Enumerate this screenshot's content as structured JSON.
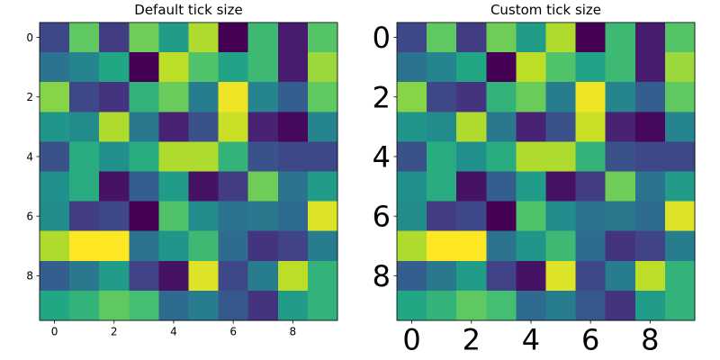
{
  "chart_data": [
    {
      "type": "heatmap",
      "title": "Default tick size",
      "xlabel": "",
      "ylabel": "",
      "xticks": [
        0,
        2,
        4,
        6,
        8
      ],
      "yticks": [
        0,
        2,
        4,
        6,
        8
      ],
      "xlim": [
        -0.5,
        9.5
      ],
      "ylim": [
        9.5,
        -0.5
      ],
      "colormap": "viridis",
      "grid": false,
      "values": [
        [
          0.22,
          0.75,
          0.18,
          0.78,
          0.55,
          0.88,
          0.0,
          0.68,
          0.08,
          0.73
        ],
        [
          0.38,
          0.45,
          0.6,
          0.0,
          0.9,
          0.72,
          0.58,
          0.68,
          0.08,
          0.85
        ],
        [
          0.82,
          0.22,
          0.15,
          0.65,
          0.77,
          0.42,
          0.98,
          0.45,
          0.3,
          0.75
        ],
        [
          0.52,
          0.48,
          0.88,
          0.4,
          0.1,
          0.25,
          0.92,
          0.1,
          0.02,
          0.45
        ],
        [
          0.25,
          0.62,
          0.5,
          0.62,
          0.88,
          0.88,
          0.65,
          0.25,
          0.22,
          0.22
        ],
        [
          0.5,
          0.62,
          0.05,
          0.3,
          0.55,
          0.05,
          0.18,
          0.78,
          0.38,
          0.55
        ],
        [
          0.48,
          0.18,
          0.22,
          0.0,
          0.72,
          0.48,
          0.38,
          0.4,
          0.35,
          0.95
        ],
        [
          0.88,
          1.0,
          1.0,
          0.38,
          0.52,
          0.68,
          0.35,
          0.15,
          0.2,
          0.42
        ],
        [
          0.3,
          0.4,
          0.55,
          0.2,
          0.05,
          0.95,
          0.22,
          0.42,
          0.9,
          0.65
        ],
        [
          0.6,
          0.65,
          0.75,
          0.7,
          0.35,
          0.42,
          0.28,
          0.15,
          0.55,
          0.65
        ]
      ]
    },
    {
      "type": "heatmap",
      "title": "Custom tick size",
      "xlabel": "",
      "ylabel": "",
      "xticks": [
        0,
        2,
        4,
        6,
        8
      ],
      "yticks": [
        0,
        2,
        4,
        6,
        8
      ],
      "xlim": [
        -0.5,
        9.5
      ],
      "ylim": [
        9.5,
        -0.5
      ],
      "colormap": "viridis",
      "grid": false,
      "values": [
        [
          0.22,
          0.75,
          0.18,
          0.78,
          0.55,
          0.88,
          0.0,
          0.68,
          0.08,
          0.73
        ],
        [
          0.38,
          0.45,
          0.6,
          0.0,
          0.9,
          0.72,
          0.58,
          0.68,
          0.08,
          0.85
        ],
        [
          0.82,
          0.22,
          0.15,
          0.65,
          0.77,
          0.42,
          0.98,
          0.45,
          0.3,
          0.75
        ],
        [
          0.52,
          0.48,
          0.88,
          0.4,
          0.1,
          0.25,
          0.92,
          0.1,
          0.02,
          0.45
        ],
        [
          0.25,
          0.62,
          0.5,
          0.62,
          0.88,
          0.88,
          0.65,
          0.25,
          0.22,
          0.22
        ],
        [
          0.5,
          0.62,
          0.05,
          0.3,
          0.55,
          0.05,
          0.18,
          0.78,
          0.38,
          0.55
        ],
        [
          0.48,
          0.18,
          0.22,
          0.0,
          0.72,
          0.48,
          0.38,
          0.4,
          0.35,
          0.95
        ],
        [
          0.88,
          1.0,
          1.0,
          0.38,
          0.52,
          0.68,
          0.35,
          0.15,
          0.2,
          0.42
        ],
        [
          0.3,
          0.4,
          0.55,
          0.2,
          0.05,
          0.95,
          0.22,
          0.42,
          0.9,
          0.65
        ],
        [
          0.6,
          0.65,
          0.75,
          0.7,
          0.35,
          0.42,
          0.28,
          0.15,
          0.55,
          0.65
        ]
      ]
    }
  ]
}
